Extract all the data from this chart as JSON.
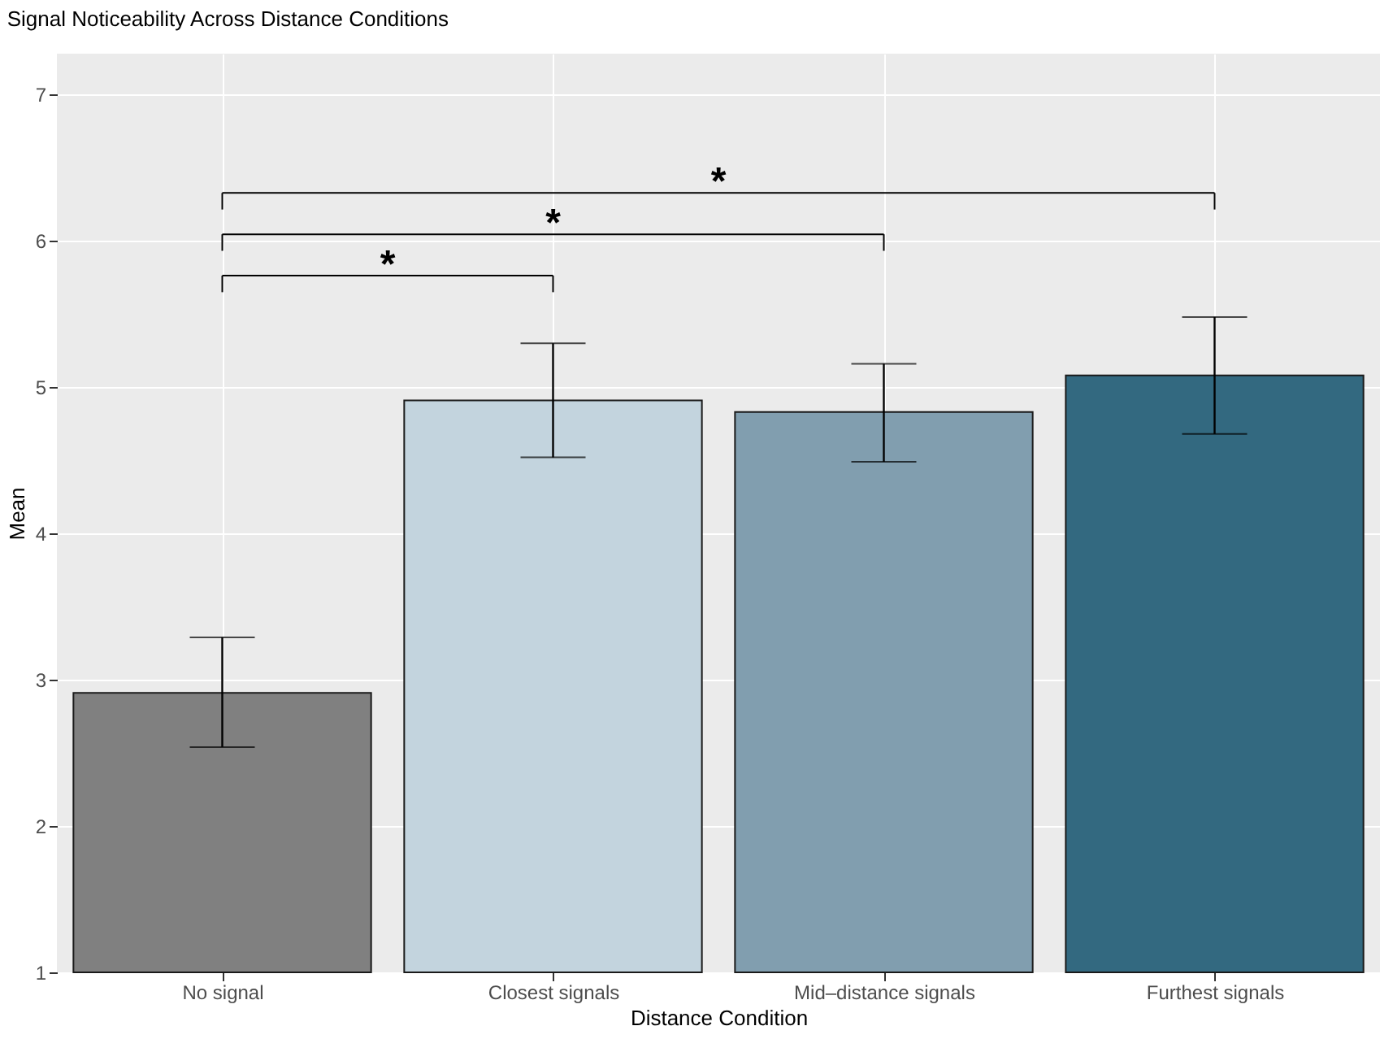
{
  "chart_data": {
    "type": "bar",
    "title": "Signal Noticeability Across Distance Conditions",
    "xlabel": "Distance Condition",
    "ylabel": "Mean",
    "categories": [
      "No signal",
      "Closest signals",
      "Mid–distance signals",
      "Furthest signals"
    ],
    "values": [
      2.91,
      4.91,
      4.83,
      5.08
    ],
    "colors": [
      "#808080",
      "#c3d4de",
      "#819eaf",
      "#336980"
    ],
    "errors": [
      [
        2.54,
        3.29
      ],
      [
        4.52,
        5.3
      ],
      [
        4.49,
        5.16
      ],
      [
        4.68,
        5.48
      ]
    ],
    "ylim": [
      1,
      7.28
    ],
    "yticks": [
      1,
      2,
      3,
      4,
      5,
      6,
      7
    ],
    "grid": true,
    "legend": false,
    "annotations": [
      "*",
      "*",
      "*"
    ]
  }
}
